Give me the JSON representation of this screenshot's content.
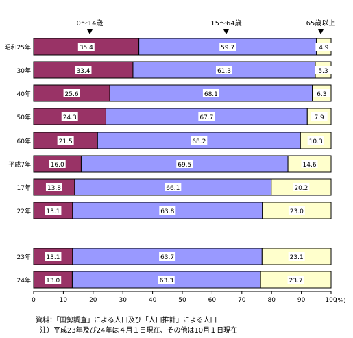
{
  "chart_data": {
    "type": "bar",
    "stacked": true,
    "orientation": "horizontal",
    "categories": [
      "昭和25年",
      "30年",
      "40年",
      "50年",
      "60年",
      "平成7年",
      "17年",
      "22年",
      "23年",
      "24年"
    ],
    "series": [
      {
        "name": "0～14歳",
        "values": [
          35.4,
          33.4,
          25.6,
          24.3,
          21.5,
          16.0,
          13.8,
          13.1,
          13.1,
          13.0
        ]
      },
      {
        "name": "15～64歳",
        "values": [
          59.7,
          61.3,
          68.1,
          67.7,
          68.2,
          69.5,
          66.1,
          63.8,
          63.7,
          63.3
        ]
      },
      {
        "name": "65歳以上",
        "values": [
          4.9,
          5.3,
          6.3,
          7.9,
          10.3,
          14.6,
          20.2,
          23.0,
          23.1,
          23.7
        ]
      }
    ],
    "xlim": [
      0,
      100
    ],
    "xticks": [
      0,
      10,
      20,
      30,
      40,
      50,
      60,
      70,
      80,
      90,
      100
    ],
    "xunit": "(%)",
    "colors": [
      "#993366",
      "#9999ff",
      "#ffffcc"
    ],
    "grid": false,
    "legend": "top, labels with arrows above bars"
  },
  "notes": {
    "source": "資料：「国勢調査」による人口及び「人口推計」による人口",
    "footnote": "注）平成23年及び24年は４月１日現在、その他は10月１日現在"
  }
}
